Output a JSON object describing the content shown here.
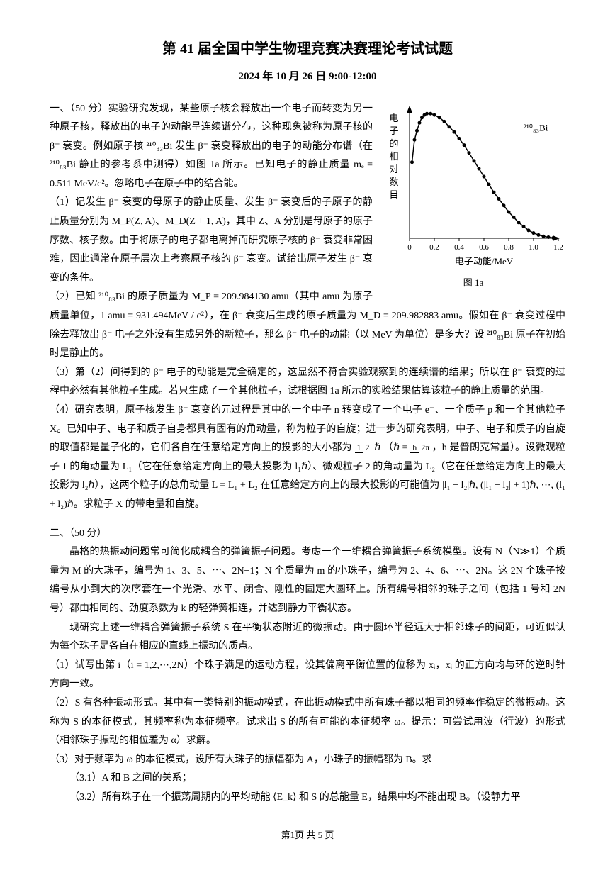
{
  "header": {
    "title": "第 41 届全国中学生物理竞赛决赛理论考试试题",
    "subtitle": "2024 年 10 月 26 日 9:00-12:00"
  },
  "chart": {
    "type": "scatter-line",
    "xlabel": "电子动能/MeV",
    "ylabel": "电子的相对数目",
    "isotope_label": "²¹⁰₈₃Bi",
    "caption": "图 1a",
    "xlim": [
      0,
      1.2
    ],
    "ylim": [
      0,
      1.0
    ],
    "xticks": [
      0,
      0.2,
      0.4,
      0.6,
      0.8,
      1.0,
      1.2
    ],
    "line_color": "#000000",
    "point_color": "#000000",
    "background_color": "#ffffff",
    "axis_color": "#000000",
    "tick_fontsize": 11,
    "label_fontsize": 13,
    "marker_size": 2.5,
    "line_width": 1.5,
    "points": [
      [
        0.02,
        0.58
      ],
      [
        0.04,
        0.75
      ],
      [
        0.06,
        0.82
      ],
      [
        0.08,
        0.88
      ],
      [
        0.1,
        0.92
      ],
      [
        0.12,
        0.94
      ],
      [
        0.14,
        0.95
      ],
      [
        0.17,
        0.95
      ],
      [
        0.2,
        0.94
      ],
      [
        0.24,
        0.92
      ],
      [
        0.28,
        0.89
      ],
      [
        0.32,
        0.85
      ],
      [
        0.36,
        0.81
      ],
      [
        0.4,
        0.76
      ],
      [
        0.44,
        0.71
      ],
      [
        0.48,
        0.65
      ],
      [
        0.52,
        0.59
      ],
      [
        0.56,
        0.53
      ],
      [
        0.6,
        0.47
      ],
      [
        0.64,
        0.41
      ],
      [
        0.68,
        0.35
      ],
      [
        0.72,
        0.3
      ],
      [
        0.76,
        0.25
      ],
      [
        0.8,
        0.2
      ],
      [
        0.84,
        0.16
      ],
      [
        0.88,
        0.12
      ],
      [
        0.92,
        0.09
      ],
      [
        0.96,
        0.06
      ],
      [
        1.0,
        0.04
      ],
      [
        1.04,
        0.025
      ],
      [
        1.08,
        0.015
      ],
      [
        1.12,
        0.008
      ],
      [
        1.16,
        0.003
      ]
    ]
  },
  "p1_intro": "一、（50 分）实验研究发现，某些原子核会释放出一个电子而转变为另一种原子核，释放出的电子的动能呈连续谱分布，这种现象被称为原子核的 β⁻ 衰变。例如原子核 ²¹⁰₈₃Bi 发生 β⁻ 衰变释放出的电子的动能分布谱（在 ²¹⁰₈₃Bi 静止的参考系中测得）如图 1a 所示。已知电子的静止质量 mₑ = 0.511 MeV/c²。忽略电子在原子中的结合能。",
  "p1_1": "（1）记发生 β⁻ 衰变的母原子的静止质量、发生 β⁻ 衰变后的子原子的静止质量分别为 M_P(Z, A)、M_D(Z + 1, A)，其中 Z、A 分别是母原子的原子序数、核子数。由于将原子的电子都电离掉而研究原子核的 β⁻ 衰变非常困难，因此通常在原子层次上考察原子核的 β⁻ 衰变。试给出原子发生 β⁻ 衰变的条件。",
  "p1_2": "（2）已知 ²¹⁰₈₃Bi 的原子质量为 M_P = 209.984130 amu（其中 amu 为原子质量单位，1 amu = 931.494MeV / c²），在 β⁻ 衰变后生成的原子质量为 M_D = 209.982883 amu。假如在 β⁻ 衰变过程中除去释放出 β⁻ 电子之外没有生成另外的新粒子，那么 β⁻ 电子的动能（以 MeV 为单位）是多大？设 ²¹⁰₈₃Bi 原子在初始时是静止的。",
  "p1_3": "（3）第（2）问得到的 β⁻ 电子的动能是完全确定的，这显然不符合实验观察到的连续谱的结果；所以在 β⁻ 衰变的过程中必然有其他粒子生成。若只生成了一个其他粒子，试根据图 1a 所示的实验结果估算该粒子的静止质量的范围。",
  "p1_4a": "（4）研究表明，原子核发生 β⁻ 衰变的元过程是其中的一个中子 n 转变成了一个电子 e⁻、一个质子 p 和一个其他粒子 X。已知中子、电子和质子自身都具有固有的角动量，称为粒子的自旋；进一步的研究表明，中子、电子和质子的自旋的取值都是量子化的，它们各自在任意给定方向上的投影的大小都为 ",
  "p1_4b": "（ℏ = ",
  "p1_4c": "，h 是普朗克常量）。设微观粒子 1 的角动量为 L₁（它在任意给定方向上的最大投影为 l₁ℏ）、微观粒子 2 的角动量为 L₂（它在任意给定方向上的最大投影为 l₂ℏ），这两个粒子的总角动量 L = L₁ + L₂ 在任意给定方向上的最大投影的可能值为 |l₁ − l₂|ℏ, (|l₁ − l₂| + 1)ℏ, ⋯, (l₁ + l₂)ℏ。求粒子 X 的带电量和自旋。",
  "p2_h": "二、（50 分）",
  "p2_a": "晶格的热振动问题常可简化成耦合的弹簧振子问题。考虑一个一维耦合弹簧振子系统模型。设有 N（N≫1）个质量为 M 的大珠子，编号为 1、3、5、⋯、2N−1；N 个质量为 m 的小珠子，编号为 2、4、6、⋯、2N。这 2N 个珠子按编号从小到大的次序套在一个光滑、水平、闭合、刚性的固定大圆环上。所有编号相邻的珠子之间（包括 1 号和 2N 号）都由相同的、劲度系数为 k 的轻弹簧相连，并达到静力平衡状态。",
  "p2_b": "现研究上述一维耦合弹簧振子系统 S 在平衡状态附近的微振动。由于圆环半径远大于相邻珠子的间距，可近似认为每个珠子是各自在相应的直线上振动的质点。",
  "p2_1": "（1）试写出第 i（i = 1,2,⋯,2N）个珠子满足的运动方程，设其偏离平衡位置的位移为 xᵢ，xᵢ 的正方向均与环的逆时针方向一致。",
  "p2_2": "（2）S 有各种振动形式。其中有一类特别的振动模式，在此振动模式中所有珠子都以相同的频率作稳定的微振动。这称为 S 的本征模式，其频率称为本征频率。试求出 S 的所有可能的本征频率 ω。提示：可尝试用波（行波）的形式（相邻珠子振动的相位差为 α）求解。",
  "p2_3": "（3）对于频率为 ω 的本征模式，设所有大珠子的振幅都为 A，小珠子的振幅都为 B。求",
  "p2_31": "（3.1）A 和 B 之间的关系；",
  "p2_32": "（3.2）所有珠子在一个振荡周期内的平均动能 ⟨E_k⟩ 和 S 的总能量 E，结果中均不能出现 B。（设静力平",
  "footer": "第1页   共 5 页"
}
